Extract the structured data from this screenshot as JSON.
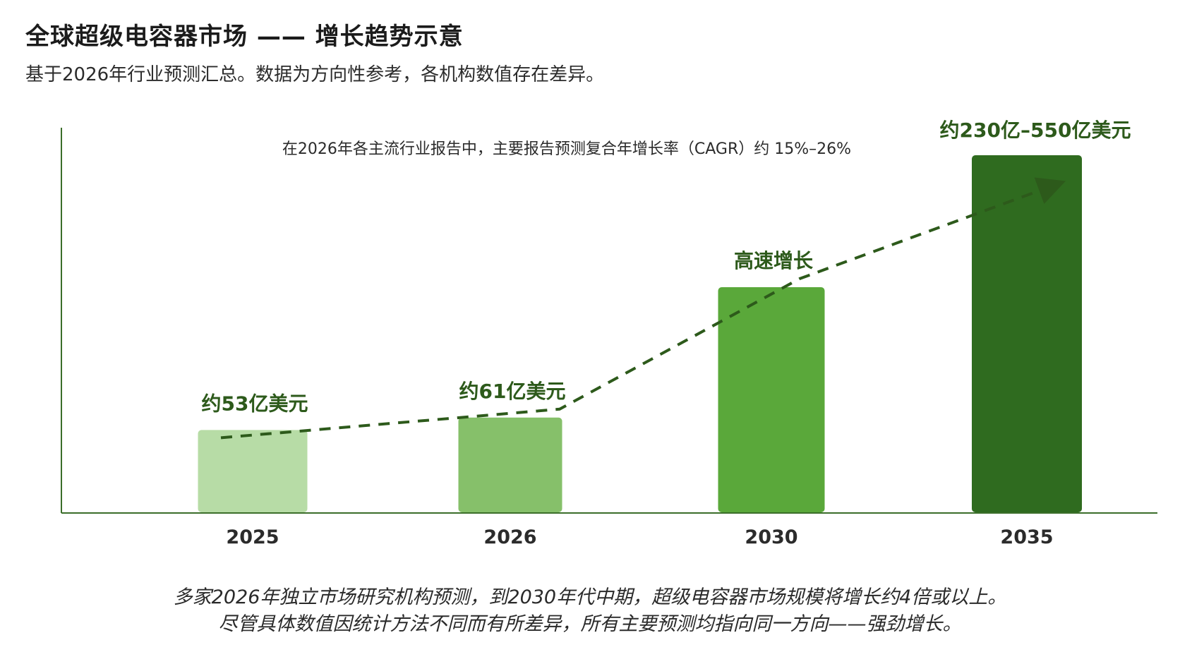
{
  "header": {
    "title": "全球超级电容器市场 —— 增长趋势示意",
    "subtitle": "基于2026年行业预测汇总。数据为方向性参考，各机构数值存在差异。"
  },
  "chart_data": {
    "type": "bar",
    "categories": [
      "2025",
      "2026",
      "2030",
      "2035"
    ],
    "values": [
      53,
      61,
      145,
      230
    ],
    "value_range_2035": [
      230,
      550
    ],
    "unit": "亿美元",
    "data_labels": [
      "约53亿美元",
      "约61亿美元",
      "高速增长",
      "约230亿–550亿美元"
    ],
    "annotation": "在2026年各主流行业报告中，主要报告预测复合年增长率（CAGR）约 15%–26%",
    "trend_line": "dashed-arrow",
    "bar_colors": [
      "#b7dca6",
      "#86c06a",
      "#5aa83a",
      "#2f6b1f"
    ],
    "label_color": "#2d5a1b",
    "axis_color": "#3b6e2a",
    "grid": false,
    "legend": "none"
  },
  "footer": {
    "line1": "多家2026年独立市场研究机构预测，到2030年代中期，超级电容器市场规模将增长约4倍或以上。",
    "line2": "尽管具体数值因统计方法不同而有所差异，所有主要预测均指向同一方向——强劲增长。"
  }
}
